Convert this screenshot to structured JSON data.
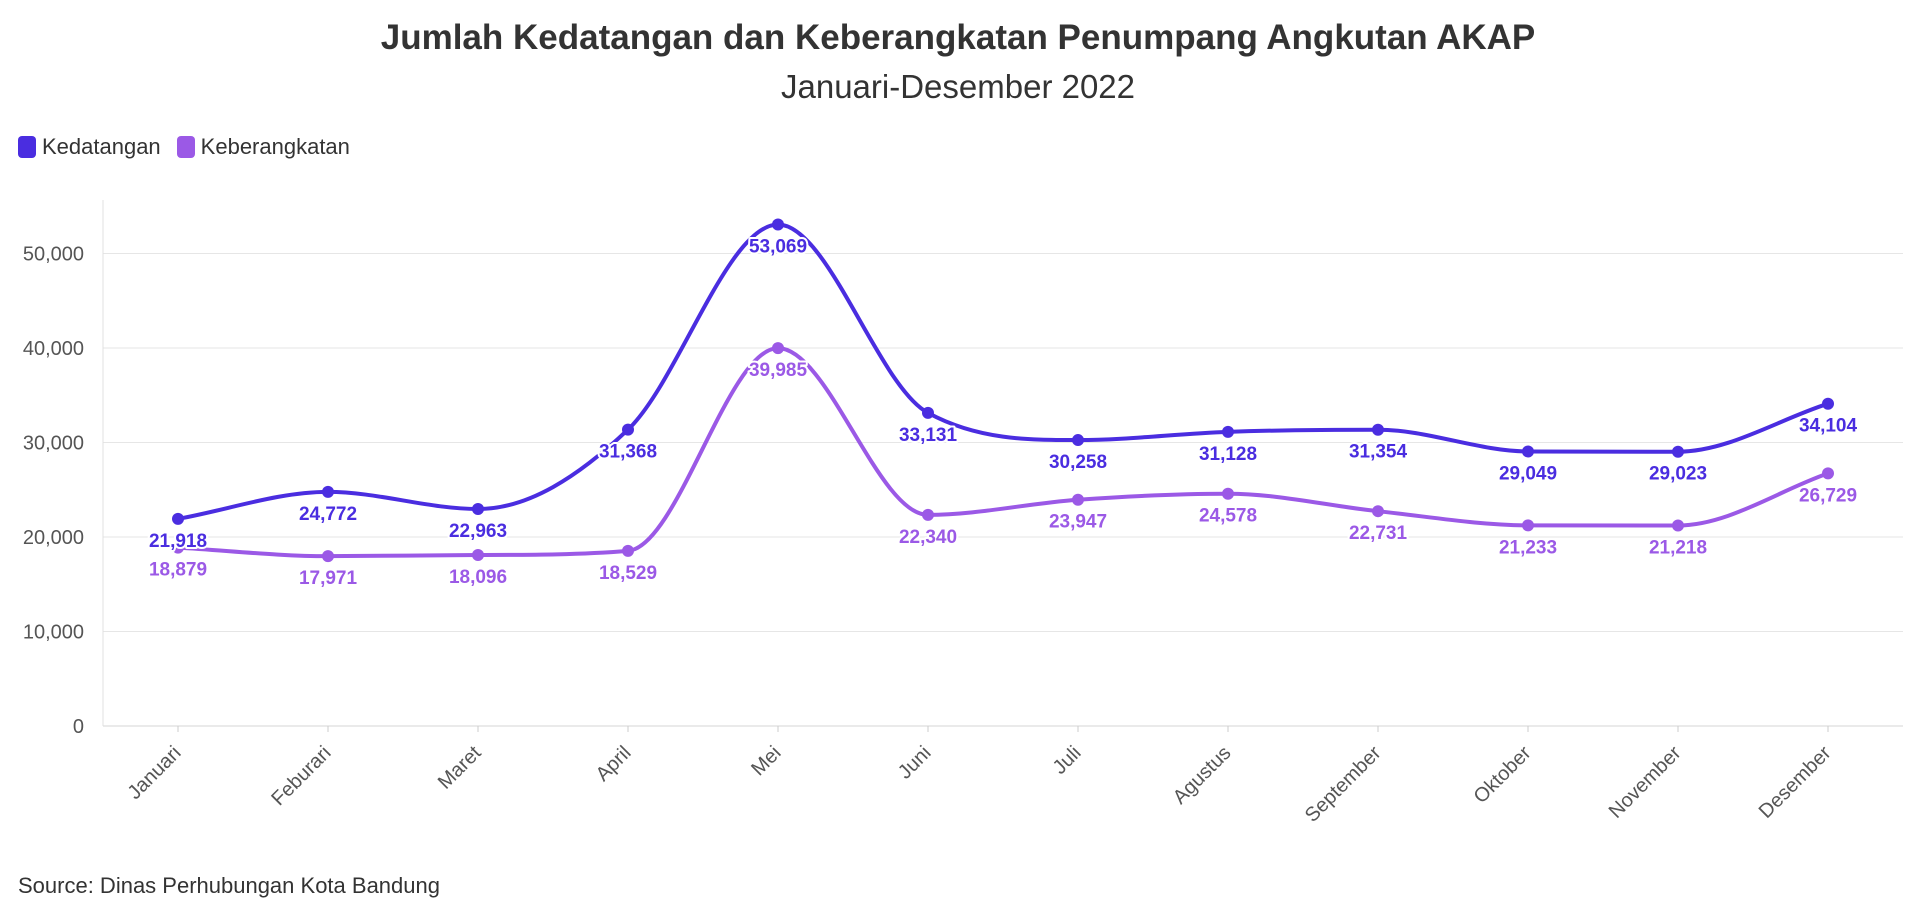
{
  "chart_data": {
    "type": "line",
    "title": "Jumlah Kedatangan dan Keberangkatan Penumpang Angkutan AKAP",
    "subtitle": "Januari-Desember 2022",
    "source": "Source: Dinas Perhubungan Kota Bandung",
    "categories": [
      "Januari",
      "Feburari",
      "Maret",
      "April",
      "Mei",
      "Juni",
      "Juli",
      "Agustus",
      "September",
      "Oktober",
      "November",
      "Desember"
    ],
    "ylim": [
      0,
      55000
    ],
    "y_ticks": [
      0,
      10000,
      20000,
      30000,
      40000,
      50000
    ],
    "y_tick_labels": [
      "0",
      "10,000",
      "20,000",
      "30,000",
      "40,000",
      "50,000"
    ],
    "grid": true,
    "legend_position": "top-left",
    "series": [
      {
        "name": "Kedatangan",
        "color": "#4a2de0",
        "values": [
          21918,
          24772,
          22963,
          31368,
          53069,
          33131,
          30258,
          31128,
          31354,
          29049,
          29023,
          34104
        ],
        "labels": [
          "21,918",
          "24,772",
          "22,963",
          "31,368",
          "53,069",
          "33,131",
          "30,258",
          "31,128",
          "31,354",
          "29,049",
          "29,023",
          "34,104"
        ]
      },
      {
        "name": "Keberangkatan",
        "color": "#9b59e6",
        "values": [
          18879,
          17971,
          18096,
          18529,
          39985,
          22340,
          23947,
          24578,
          22731,
          21233,
          21218,
          26729
        ],
        "labels": [
          "18,879",
          "17,971",
          "18,096",
          "18,529",
          "39,985",
          "22,340",
          "23,947",
          "24,578",
          "22,731",
          "21,233",
          "21,218",
          "26,729"
        ]
      }
    ]
  }
}
